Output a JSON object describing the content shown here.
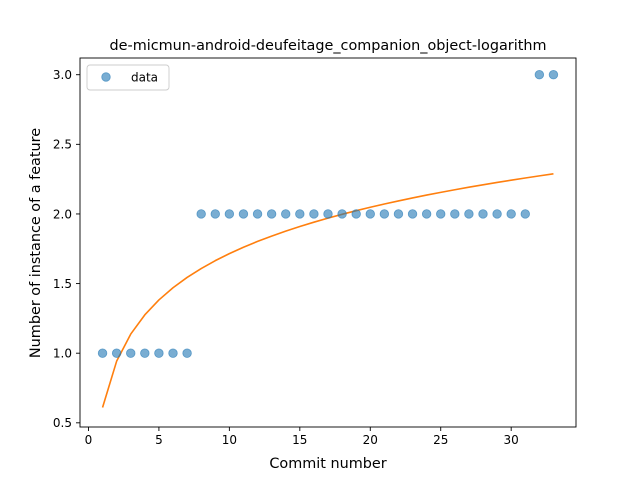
{
  "chart_data": {
    "type": "scatter",
    "title": "de-micmun-android-deufeitage_companion_object-logarithm",
    "xlabel": "Commit number",
    "ylabel": "Number of instance of a feature",
    "xlim": [
      -0.6,
      34.6
    ],
    "ylim": [
      0.47,
      3.12
    ],
    "xticks": [
      0,
      5,
      10,
      15,
      20,
      25,
      30
    ],
    "yticks": [
      0.5,
      1.0,
      1.5,
      2.0,
      2.5,
      3.0
    ],
    "xtick_labels": [
      "0",
      "5",
      "10",
      "15",
      "20",
      "25",
      "30"
    ],
    "ytick_labels": [
      "0.5",
      "1.0",
      "1.5",
      "2.0",
      "2.5",
      "3.0"
    ],
    "grid": false,
    "legend": {
      "position": "top-left",
      "entries": [
        "data"
      ]
    },
    "series": [
      {
        "name": "data",
        "kind": "scatter",
        "color": "#1f77b4",
        "x": [
          1,
          2,
          3,
          4,
          5,
          6,
          7,
          8,
          9,
          10,
          11,
          12,
          13,
          14,
          15,
          16,
          17,
          18,
          19,
          20,
          21,
          22,
          23,
          24,
          25,
          26,
          27,
          28,
          29,
          30,
          31,
          32,
          33
        ],
        "y": [
          1,
          1,
          1,
          1,
          1,
          1,
          1,
          2,
          2,
          2,
          2,
          2,
          2,
          2,
          2,
          2,
          2,
          2,
          2,
          2,
          2,
          2,
          2,
          2,
          2,
          2,
          2,
          2,
          2,
          2,
          2,
          3,
          3
        ]
      },
      {
        "kind": "line",
        "color": "#ff7f0e",
        "model": "logarithmic",
        "intercept": 0.61,
        "coefficient": 0.48,
        "x_range": [
          1,
          33
        ]
      }
    ]
  }
}
